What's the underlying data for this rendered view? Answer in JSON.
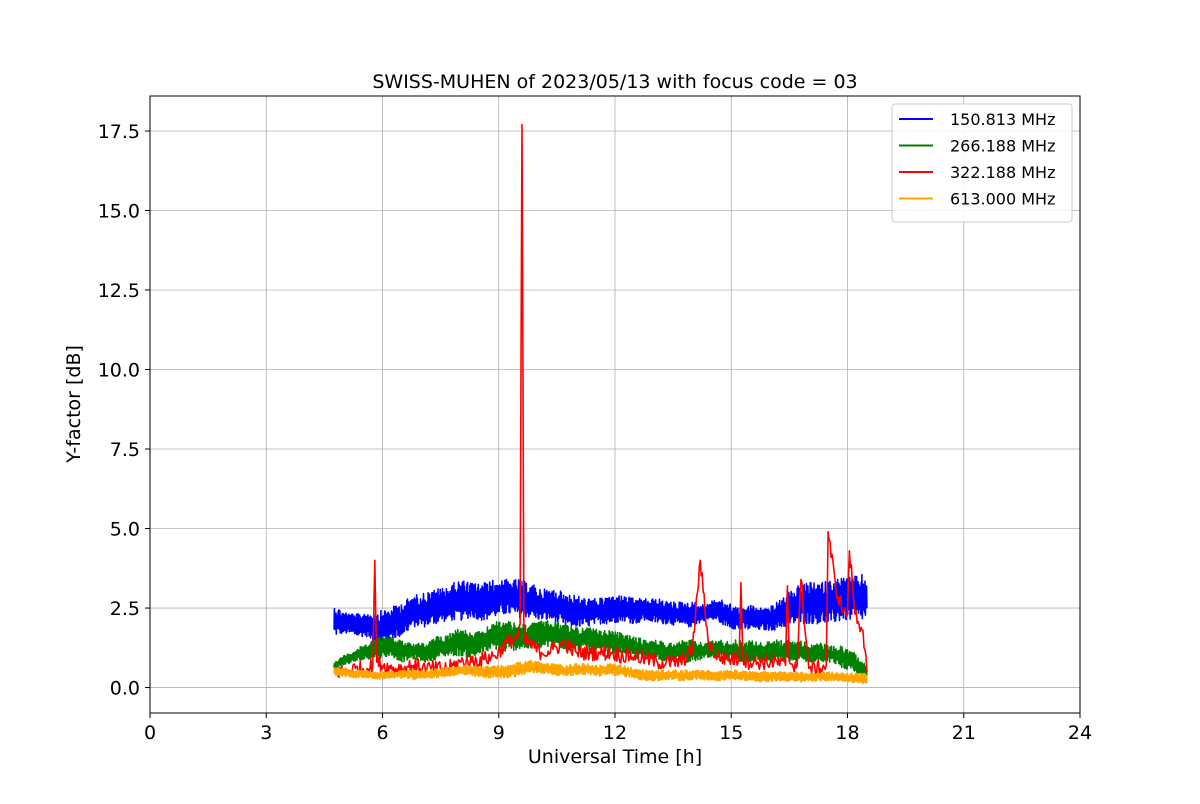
{
  "chart_data": {
    "type": "line",
    "title": "SWISS-MUHEN of 2023/05/13 with focus code = 03",
    "xlabel": "Universal Time [h]",
    "ylabel": "Y-factor [dB]",
    "xlim": [
      0,
      24
    ],
    "ylim": [
      -0.8,
      18.6
    ],
    "xticks": [
      0,
      3,
      6,
      9,
      12,
      15,
      18,
      21,
      24
    ],
    "xtick_labels": [
      "0",
      "3",
      "6",
      "9",
      "12",
      "15",
      "18",
      "21",
      "24"
    ],
    "yticks": [
      0,
      2.5,
      5,
      7.5,
      10,
      12.5,
      15,
      17.5
    ],
    "ytick_labels": [
      "0.0",
      "2.5",
      "5.0",
      "7.5",
      "10.0",
      "12.5",
      "15.0",
      "17.5"
    ],
    "grid": true,
    "legend_position": "top-right",
    "series": [
      {
        "name": "150.813 MHz",
        "color": "#0000ff",
        "x": [
          4.75,
          5.0,
          5.3,
          5.6,
          5.9,
          6.2,
          6.5,
          6.8,
          7.1,
          7.4,
          7.7,
          8.0,
          8.3,
          8.6,
          8.9,
          9.2,
          9.5,
          9.8,
          10.1,
          10.4,
          10.7,
          11.0,
          11.3,
          11.6,
          11.9,
          12.2,
          12.5,
          12.8,
          13.1,
          13.4,
          13.7,
          14.0,
          14.3,
          14.6,
          14.9,
          15.2,
          15.5,
          15.8,
          16.1,
          16.4,
          16.7,
          17.0,
          17.3,
          17.6,
          17.9,
          18.2,
          18.5
        ],
        "y_low": [
          1.6,
          1.7,
          1.6,
          1.6,
          1.3,
          1.5,
          1.6,
          1.9,
          1.9,
          2.0,
          2.1,
          2.1,
          2.2,
          2.1,
          2.2,
          2.3,
          2.2,
          2.2,
          2.1,
          2.1,
          1.9,
          1.9,
          1.9,
          2.0,
          2.0,
          2.1,
          2.0,
          2.1,
          2.0,
          2.0,
          1.9,
          1.9,
          2.1,
          2.1,
          1.9,
          1.8,
          1.8,
          1.8,
          1.8,
          1.9,
          2.0,
          2.0,
          2.0,
          2.0,
          2.1,
          2.1,
          2.1
        ],
        "y_high": [
          2.6,
          2.4,
          2.3,
          2.4,
          2.4,
          2.5,
          2.7,
          2.9,
          3.0,
          3.1,
          3.2,
          3.4,
          3.3,
          3.3,
          3.4,
          3.4,
          3.4,
          3.3,
          3.1,
          3.1,
          3.0,
          2.9,
          2.8,
          2.8,
          2.9,
          2.9,
          2.8,
          2.8,
          2.8,
          2.7,
          2.7,
          2.7,
          2.6,
          2.8,
          2.7,
          2.5,
          2.6,
          2.5,
          2.6,
          2.9,
          3.2,
          3.3,
          3.3,
          3.4,
          3.5,
          3.5,
          3.6
        ]
      },
      {
        "name": "266.188 MHz",
        "color": "#008000",
        "x": [
          4.75,
          5.0,
          5.3,
          5.6,
          5.9,
          6.2,
          6.5,
          6.8,
          7.1,
          7.4,
          7.7,
          8.0,
          8.3,
          8.6,
          8.9,
          9.2,
          9.5,
          9.8,
          10.1,
          10.4,
          10.7,
          11.0,
          11.3,
          11.6,
          11.9,
          12.2,
          12.5,
          12.8,
          13.1,
          13.4,
          13.7,
          14.0,
          14.3,
          14.6,
          14.9,
          15.2,
          15.5,
          15.8,
          16.1,
          16.4,
          16.7,
          17.0,
          17.3,
          17.6,
          17.9,
          18.2,
          18.5
        ],
        "y_low": [
          0.6,
          0.7,
          0.8,
          0.9,
          0.9,
          1.0,
          0.8,
          0.9,
          0.8,
          0.9,
          1.0,
          1.0,
          0.9,
          1.1,
          1.2,
          1.1,
          1.2,
          1.2,
          1.2,
          1.3,
          1.2,
          1.1,
          1.2,
          1.1,
          1.1,
          1.1,
          0.9,
          0.9,
          0.9,
          0.8,
          0.8,
          0.8,
          0.9,
          0.9,
          0.9,
          0.8,
          0.8,
          0.8,
          0.8,
          0.8,
          0.8,
          0.8,
          0.8,
          0.8,
          0.6,
          0.4,
          0.3
        ],
        "y_high": [
          0.8,
          1.0,
          1.2,
          1.4,
          1.6,
          1.6,
          1.5,
          1.4,
          1.4,
          1.6,
          1.7,
          1.9,
          1.7,
          1.8,
          2.1,
          2.1,
          2.0,
          2.0,
          2.1,
          2.1,
          2.0,
          1.9,
          1.9,
          1.8,
          1.8,
          1.7,
          1.6,
          1.5,
          1.5,
          1.4,
          1.5,
          1.5,
          1.4,
          1.5,
          1.5,
          1.5,
          1.5,
          1.4,
          1.5,
          1.5,
          1.5,
          1.4,
          1.4,
          1.3,
          1.3,
          1.1,
          0.7
        ]
      },
      {
        "name": "322.188 MHz",
        "color": "#ff0000",
        "x": [
          4.75,
          5.0,
          5.3,
          5.6,
          5.75,
          5.8,
          5.85,
          6.2,
          6.5,
          6.8,
          7.1,
          7.4,
          7.7,
          8.0,
          8.3,
          8.6,
          8.9,
          9.2,
          9.5,
          9.55,
          9.6,
          9.65,
          10.1,
          10.4,
          10.7,
          11.0,
          11.3,
          11.6,
          11.9,
          12.2,
          12.5,
          12.8,
          13.1,
          13.4,
          13.7,
          14.0,
          14.2,
          14.4,
          14.6,
          14.9,
          15.2,
          15.25,
          15.3,
          15.5,
          15.8,
          16.1,
          16.4,
          16.45,
          16.5,
          16.7,
          16.8,
          17.0,
          17.3,
          17.45,
          17.5,
          17.7,
          17.9,
          18.0,
          18.05,
          18.2,
          18.4,
          18.5
        ],
        "y": [
          0.5,
          0.5,
          0.6,
          0.6,
          0.7,
          4.0,
          0.8,
          0.6,
          0.6,
          0.7,
          0.6,
          0.6,
          0.6,
          0.8,
          0.8,
          0.9,
          1.0,
          1.4,
          1.6,
          2.0,
          17.7,
          1.5,
          1.1,
          1.2,
          1.4,
          1.1,
          1.1,
          1.1,
          1.1,
          1.0,
          1.0,
          0.9,
          0.8,
          0.8,
          0.8,
          1.2,
          4.0,
          1.5,
          1.0,
          0.9,
          0.9,
          3.3,
          0.9,
          0.8,
          0.8,
          0.8,
          0.7,
          3.2,
          0.8,
          0.7,
          3.4,
          0.6,
          0.6,
          0.7,
          4.9,
          3.1,
          2.4,
          2.3,
          4.3,
          2.3,
          1.8,
          0.5
        ],
        "peak": {
          "x": 9.6,
          "y": 17.7
        }
      },
      {
        "name": "613.000 MHz",
        "color": "#ffa500",
        "x": [
          4.75,
          5.0,
          5.3,
          5.6,
          5.9,
          6.2,
          6.5,
          6.8,
          7.1,
          7.4,
          7.7,
          8.0,
          8.3,
          8.6,
          8.9,
          9.2,
          9.5,
          9.8,
          10.1,
          10.4,
          10.7,
          11.0,
          11.3,
          11.6,
          11.9,
          12.2,
          12.5,
          12.8,
          13.1,
          13.4,
          13.7,
          14.0,
          14.3,
          14.6,
          14.9,
          15.2,
          15.5,
          15.8,
          16.1,
          16.4,
          16.7,
          17.0,
          17.3,
          17.6,
          17.9,
          18.2,
          18.5
        ],
        "y_low": [
          0.35,
          0.35,
          0.3,
          0.3,
          0.25,
          0.3,
          0.3,
          0.25,
          0.3,
          0.3,
          0.35,
          0.4,
          0.35,
          0.3,
          0.3,
          0.3,
          0.35,
          0.45,
          0.45,
          0.4,
          0.35,
          0.4,
          0.4,
          0.35,
          0.4,
          0.35,
          0.3,
          0.2,
          0.2,
          0.25,
          0.2,
          0.25,
          0.25,
          0.2,
          0.25,
          0.25,
          0.2,
          0.15,
          0.2,
          0.2,
          0.15,
          0.2,
          0.2,
          0.2,
          0.2,
          0.15,
          0.1
        ],
        "y_high": [
          0.65,
          0.6,
          0.55,
          0.55,
          0.5,
          0.5,
          0.55,
          0.55,
          0.55,
          0.6,
          0.65,
          0.7,
          0.7,
          0.65,
          0.7,
          0.7,
          0.8,
          0.85,
          0.8,
          0.75,
          0.7,
          0.75,
          0.75,
          0.7,
          0.75,
          0.7,
          0.6,
          0.55,
          0.55,
          0.55,
          0.55,
          0.55,
          0.55,
          0.5,
          0.55,
          0.55,
          0.5,
          0.5,
          0.5,
          0.5,
          0.5,
          0.45,
          0.5,
          0.5,
          0.45,
          0.45,
          0.45
        ]
      }
    ]
  }
}
